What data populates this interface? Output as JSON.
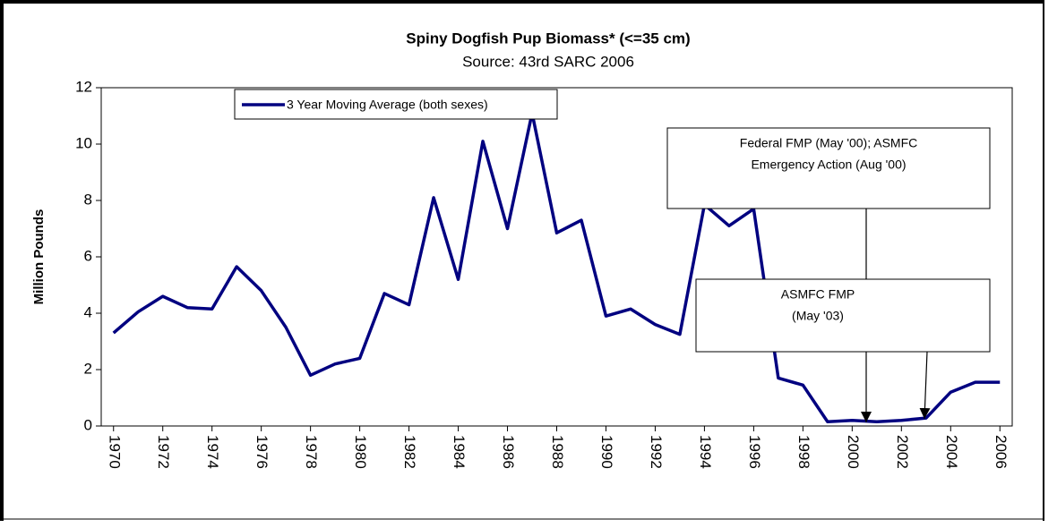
{
  "chart_data": {
    "type": "line",
    "title": "Spiny Dogfish Pup Biomass* (<=35 cm)",
    "subtitle": "Source: 43rd SARC 2006",
    "y_label": "Million Pounds",
    "x": [
      1970,
      1971,
      1972,
      1973,
      1974,
      1975,
      1976,
      1977,
      1978,
      1979,
      1980,
      1981,
      1982,
      1983,
      1984,
      1985,
      1986,
      1987,
      1988,
      1989,
      1990,
      1991,
      1992,
      1993,
      1994,
      1995,
      1996,
      1997,
      1998,
      1999,
      2000,
      2001,
      2002,
      2003,
      2004,
      2005,
      2006
    ],
    "series": [
      {
        "name": "3 Year Moving Average (both sexes)",
        "color": "#000080",
        "values": [
          3.3,
          4.05,
          4.6,
          4.2,
          4.15,
          5.65,
          4.8,
          3.5,
          1.8,
          2.2,
          2.4,
          4.7,
          4.3,
          8.1,
          5.2,
          10.1,
          7.0,
          11.1,
          6.85,
          7.3,
          3.9,
          4.15,
          3.6,
          3.25,
          7.85,
          7.1,
          7.7,
          1.7,
          1.45,
          0.15,
          0.2,
          0.15,
          0.2,
          0.28,
          1.2,
          1.55,
          1.55
        ]
      }
    ],
    "xlim": [
      1969.5,
      2006.5
    ],
    "xticks": [
      1970,
      1972,
      1974,
      1976,
      1978,
      1980,
      1982,
      1984,
      1986,
      1988,
      1990,
      1992,
      1994,
      1996,
      1998,
      2000,
      2002,
      2004,
      2006
    ],
    "ylim": [
      0,
      12
    ],
    "yticks": [
      0,
      2,
      4,
      6,
      8,
      10,
      12
    ],
    "grid": false,
    "annotations": [
      [
        "Federal FMP (May '00); ASMFC",
        "Emergency Action (Aug '00)"
      ],
      [
        "ASMFC FMP",
        "(May '03)"
      ]
    ]
  }
}
